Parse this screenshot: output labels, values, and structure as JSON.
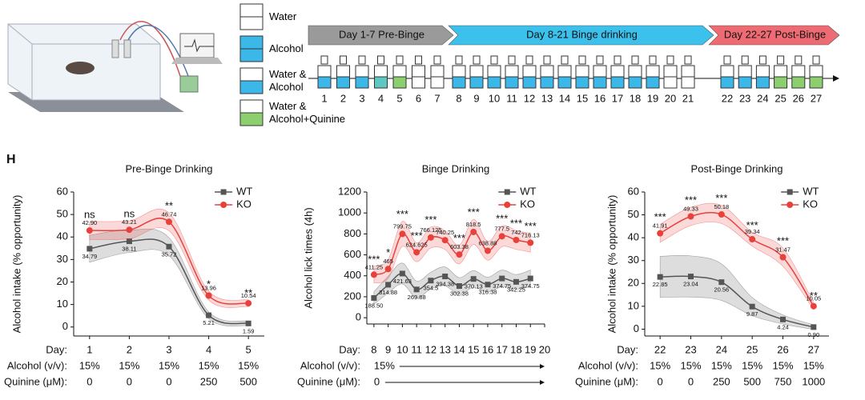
{
  "diagram": {
    "legend": [
      {
        "label": "Water",
        "top": "#ffffff",
        "bottom": "#ffffff"
      },
      {
        "label": "Alcohol",
        "top": "#3bb8e8",
        "bottom": "#3bb8e8"
      },
      {
        "label": "Water & Alcohol",
        "top": "#ffffff",
        "bottom": "#3bb8e8"
      },
      {
        "label": "Water & Alcohol+Quinine",
        "top": "#ffffff",
        "bottom": "#8ccf6f"
      }
    ],
    "phases": [
      {
        "label": "Day 1-7  Pre-Binge",
        "color": "#9a9a9a"
      },
      {
        "label": "Day 8-21 Binge drinking",
        "color": "#3cc0ec"
      },
      {
        "label": "Day 22-27  Post-Binge",
        "color": "#ef6b73"
      }
    ],
    "days": [
      {
        "label": "1",
        "fill": "#3bb8e8"
      },
      {
        "label": "2",
        "fill": "#3bb8e8"
      },
      {
        "label": "3",
        "fill": "#3bb8e8"
      },
      {
        "label": "4",
        "fill": "#5fc8c0"
      },
      {
        "label": "5",
        "fill": "#8ccf6f"
      },
      {
        "label": "6",
        "fill": "#ffffff"
      },
      {
        "label": "7",
        "fill": "#ffffff"
      },
      {
        "label": "8",
        "fill": "#3bb8e8"
      },
      {
        "label": "9",
        "fill": "#3bb8e8"
      },
      {
        "label": "10",
        "fill": "#3bb8e8"
      },
      {
        "label": "11",
        "fill": "#3bb8e8"
      },
      {
        "label": "12",
        "fill": "#3bb8e8"
      },
      {
        "label": "13",
        "fill": "#3bb8e8"
      },
      {
        "label": "14",
        "fill": "#3bb8e8"
      },
      {
        "label": "15",
        "fill": "#3bb8e8"
      },
      {
        "label": "16",
        "fill": "#3bb8e8"
      },
      {
        "label": "17",
        "fill": "#3bb8e8"
      },
      {
        "label": "18",
        "fill": "#3bb8e8"
      },
      {
        "label": "19",
        "fill": "#3bb8e8"
      },
      {
        "label": "20",
        "fill": "#ffffff"
      },
      {
        "label": "21",
        "fill": "#ffffff"
      },
      {
        "label": "22",
        "fill": "#3bb8e8"
      },
      {
        "label": "23",
        "fill": "#3bb8e8"
      },
      {
        "label": "24",
        "fill": "#3bb8e8"
      },
      {
        "label": "25",
        "fill": "#8ccf6f"
      },
      {
        "label": "26",
        "fill": "#8ccf6f"
      },
      {
        "label": "27",
        "fill": "#8ccf6f"
      }
    ]
  },
  "panel_label": "H",
  "chart_data": [
    {
      "type": "line",
      "title": "Pre-Binge Drinking",
      "ylabel": "Alcohol intake (% opportunity)",
      "xlabel": "Day:",
      "x": [
        1,
        2,
        3,
        4,
        5
      ],
      "xlim": [
        0.6,
        5.4
      ],
      "xticks": [
        1,
        2,
        3,
        4,
        5
      ],
      "ylim": [
        -4,
        60
      ],
      "yticks": [
        0,
        10,
        20,
        30,
        40,
        50,
        60
      ],
      "series": [
        {
          "name": "WT",
          "color": "#555555",
          "marker": "square",
          "values": [
            34.79,
            38.11,
            35.72,
            5.21,
            1.59
          ],
          "value_labels": [
            "34.79",
            "38.11",
            "35.72",
            "5.21",
            "1.59"
          ],
          "error": [
            6,
            5,
            4,
            1.5,
            1
          ]
        },
        {
          "name": "KO",
          "color": "#e8413c",
          "marker": "circle",
          "values": [
            42.9,
            43.21,
            46.74,
            13.96,
            10.54
          ],
          "value_labels": [
            "42.90",
            "43.21",
            "46.74",
            "13.96",
            "10.54"
          ],
          "error": [
            4,
            4,
            4,
            2,
            1.5
          ]
        }
      ],
      "annotations": [
        "ns",
        "ns",
        "**",
        "*",
        "**"
      ],
      "alcohol_label": "Alcohol (v/v):",
      "alcohol": [
        "15%",
        "15%",
        "15%",
        "15%",
        "15%"
      ],
      "quinine_label": "Quinine (μM):",
      "quinine": [
        0,
        0,
        0,
        250,
        500
      ]
    },
    {
      "type": "line",
      "title": "Binge Drinking",
      "ylabel": "Alcohol lick times (4h)",
      "xlabel": "Day:",
      "x": [
        8,
        9,
        10,
        11,
        12,
        13,
        14,
        15,
        16,
        17,
        18,
        19
      ],
      "xlim": [
        7.5,
        20
      ],
      "xticks": [
        8,
        9,
        10,
        11,
        12,
        13,
        14,
        15,
        16,
        17,
        18,
        19,
        20
      ],
      "ylim": [
        -60,
        1200
      ],
      "yticks": [
        0,
        200,
        400,
        600,
        800,
        1000,
        1200
      ],
      "series": [
        {
          "name": "WT",
          "color": "#555555",
          "marker": "square",
          "values": [
            188.5,
            314.88,
            421.63,
            269.88,
            354.5,
            394.38,
            302.38,
            370.13,
            316.38,
            374.75,
            342.25,
            374.75
          ],
          "value_labels": [
            "188.50",
            "314.88",
            "421.63",
            "269.88",
            "354.5",
            "394.38",
            "302.38",
            "370.13",
            "316.38",
            "374.75",
            "342.25",
            "374.75"
          ],
          "error": [
            60,
            80,
            100,
            80,
            80,
            90,
            80,
            80,
            70,
            80,
            70,
            80
          ]
        },
        {
          "name": "KO",
          "color": "#e8413c",
          "marker": "circle",
          "values": [
            411.25,
            465,
            799.75,
            624.625,
            766.125,
            740.25,
            603.38,
            818.5,
            638.88,
            777.5,
            742,
            716.13
          ],
          "value_labels": [
            "411.25",
            "465",
            "799.75",
            "624.625",
            "766.125",
            "740.25",
            "603.38",
            "818.5",
            "638.88",
            "777.5",
            "742",
            "716.13"
          ],
          "error": [
            80,
            90,
            120,
            90,
            100,
            90,
            90,
            120,
            90,
            100,
            90,
            90
          ]
        }
      ],
      "annotations": [
        "***",
        "*",
        "***",
        "***",
        "***",
        null,
        "***",
        "***",
        null,
        "***",
        "***",
        "***"
      ],
      "alcohol_label": "Alcohol (v/v):",
      "alcohol": [
        "15%"
      ],
      "quinine_label": "Quinine (μM):",
      "quinine": [
        0
      ]
    },
    {
      "type": "line",
      "title": "Post-Binge Drinking",
      "ylabel": "Alcohol intake (% opportunity)",
      "xlabel": "Day:",
      "x": [
        22,
        23,
        24,
        25,
        26,
        27
      ],
      "xlim": [
        21.5,
        27.5
      ],
      "xticks": [
        22,
        23,
        24,
        25,
        26,
        27
      ],
      "ylim": [
        -3,
        60
      ],
      "yticks": [
        0,
        10,
        20,
        30,
        40,
        50,
        60
      ],
      "series": [
        {
          "name": "WT",
          "color": "#555555",
          "marker": "square",
          "values": [
            22.85,
            23.04,
            20.56,
            9.87,
            4.24,
            0.9
          ],
          "value_labels": [
            "22.85",
            "23.04",
            "20.56",
            "9.87",
            "4.24",
            "0.90"
          ],
          "error": [
            9,
            9,
            8,
            4,
            2,
            1
          ]
        },
        {
          "name": "KO",
          "color": "#e8413c",
          "marker": "circle",
          "values": [
            41.91,
            49.33,
            50.18,
            39.34,
            31.47,
            10.05
          ],
          "value_labels": [
            "41.91",
            "49.33",
            "50.18",
            "39.34",
            "31.47",
            "10.05"
          ],
          "error": [
            4,
            4,
            4,
            3,
            4,
            1.5
          ]
        }
      ],
      "annotations": [
        "***",
        "***",
        "***",
        "***",
        "***",
        "**"
      ],
      "alcohol_label": "Alcohol (v/v):",
      "alcohol": [
        "15%",
        "15%",
        "15%",
        "15%",
        "15%",
        "15%"
      ],
      "quinine_label": "Quinine (μM):",
      "quinine": [
        0,
        0,
        250,
        500,
        750,
        1000
      ]
    }
  ]
}
